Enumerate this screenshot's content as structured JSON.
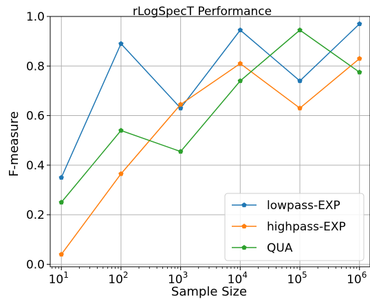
{
  "chart_data": {
    "type": "line",
    "title": "rLogSpecT Performance",
    "xlabel": "Sample Size",
    "ylabel": "F-measure",
    "x_scale": "log",
    "x": [
      10,
      100,
      1000,
      10000,
      100000,
      1000000
    ],
    "x_tick_labels": [
      {
        "base": "10",
        "exp": "1"
      },
      {
        "base": "10",
        "exp": "2"
      },
      {
        "base": "10",
        "exp": "3"
      },
      {
        "base": "10",
        "exp": "4"
      },
      {
        "base": "10",
        "exp": "5"
      },
      {
        "base": "10",
        "exp": "6"
      }
    ],
    "y_ticks": [
      "0.0",
      "0.2",
      "0.4",
      "0.6",
      "0.8",
      "1.0"
    ],
    "xlim": [
      6.5,
      1500000
    ],
    "ylim": [
      -0.01,
      1.0
    ],
    "grid": true,
    "legend_position": "lower right",
    "series": [
      {
        "name": "lowpass-EXP",
        "color": "#1f77b4",
        "values": [
          0.35,
          0.89,
          0.63,
          0.945,
          0.74,
          0.97
        ]
      },
      {
        "name": "highpass-EXP",
        "color": "#ff7f0e",
        "values": [
          0.04,
          0.365,
          0.645,
          0.81,
          0.63,
          0.83
        ]
      },
      {
        "name": "QUA",
        "color": "#2ca02c",
        "values": [
          0.25,
          0.54,
          0.455,
          0.74,
          0.945,
          0.775
        ]
      }
    ]
  }
}
